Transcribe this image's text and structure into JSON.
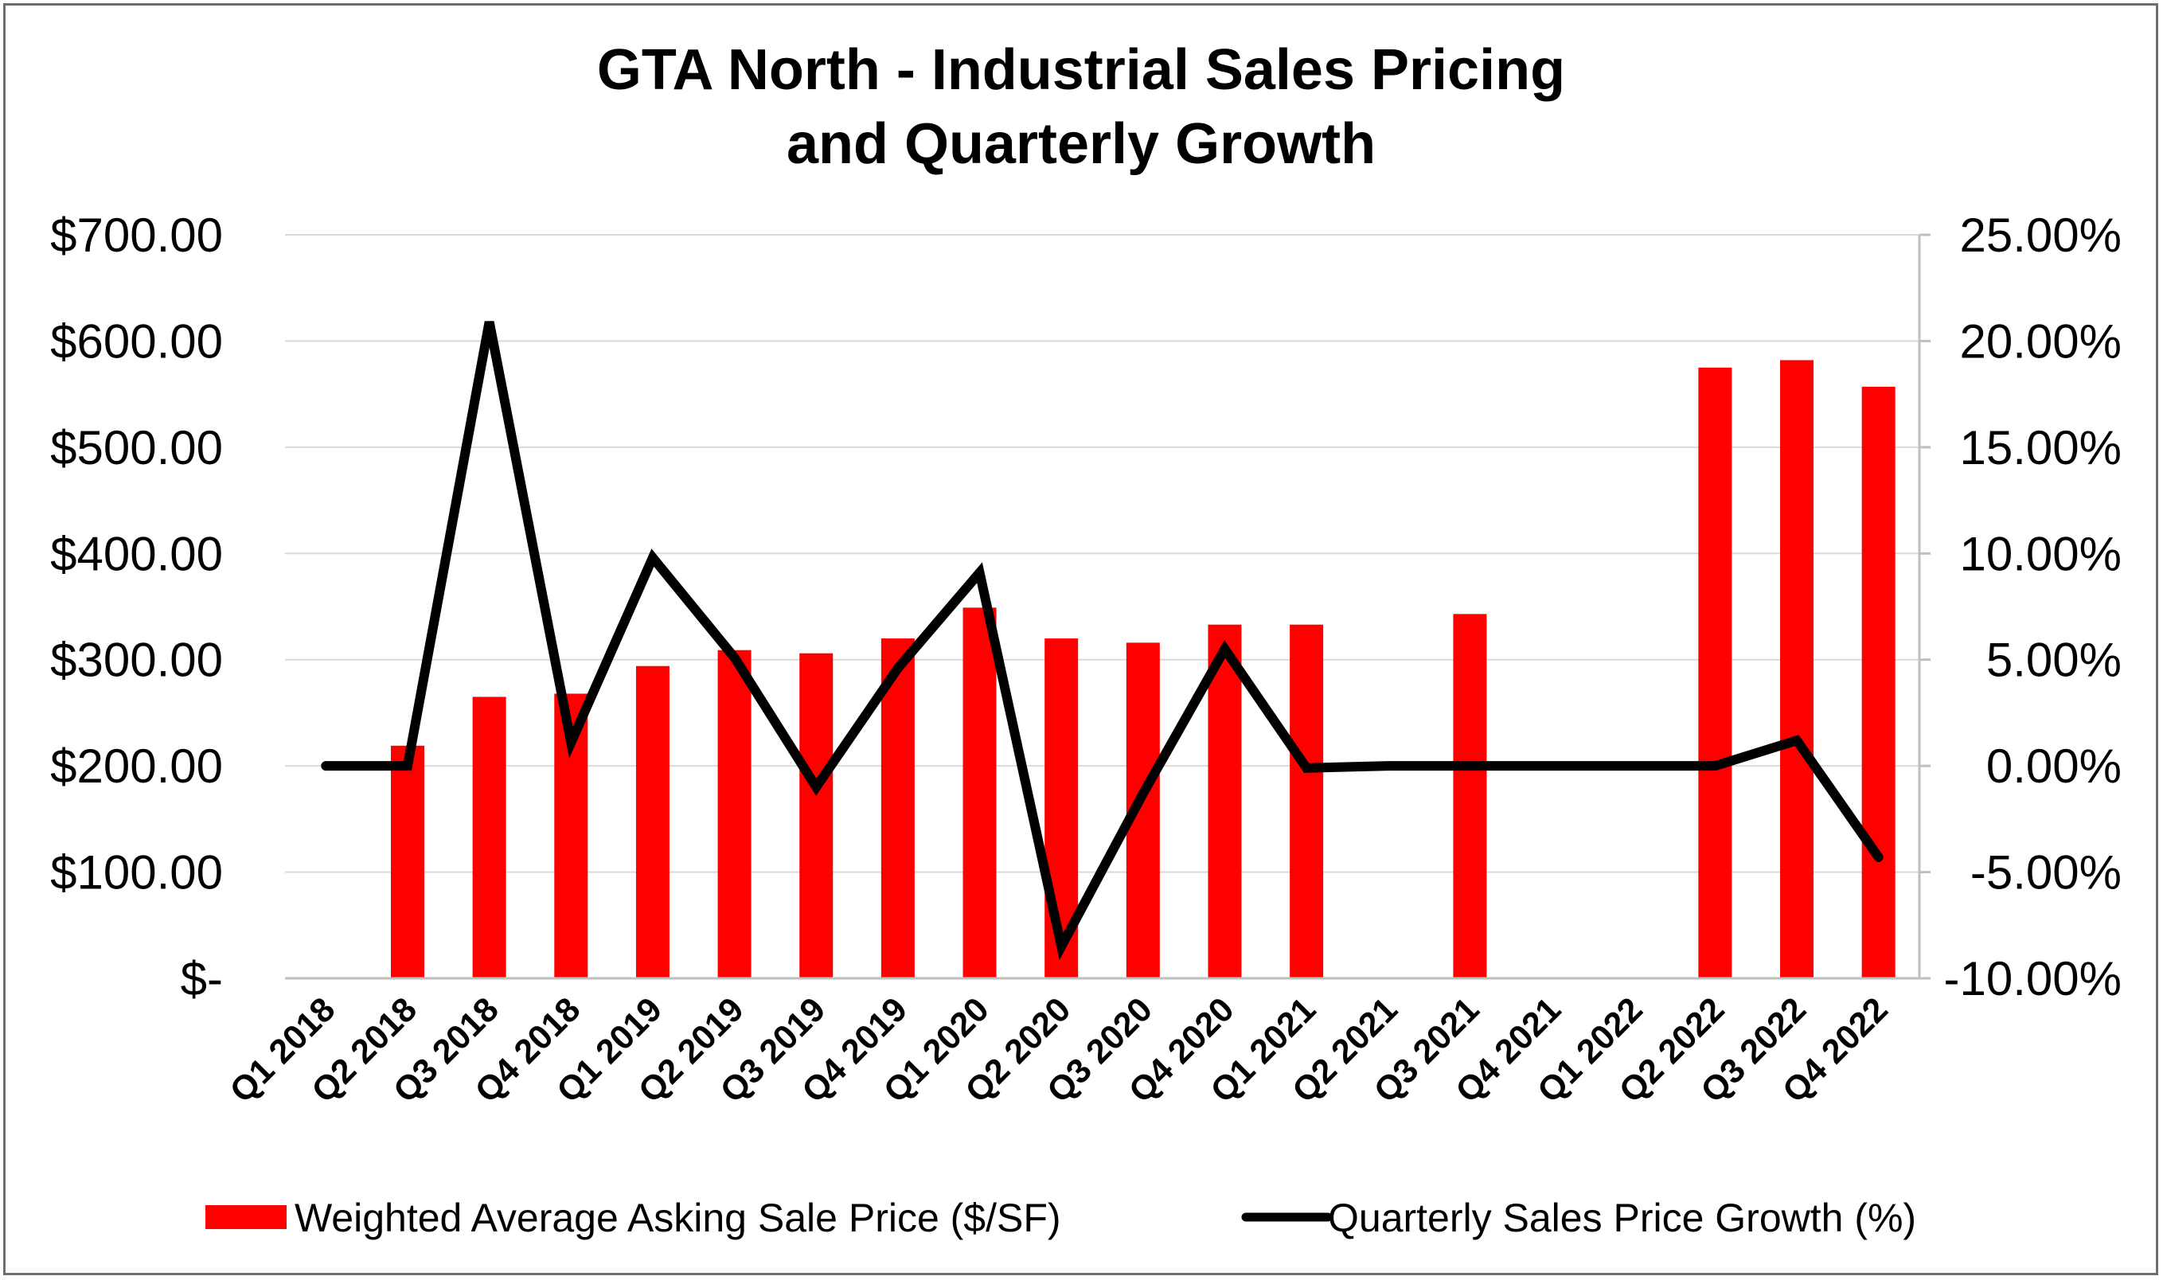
{
  "chart_data": {
    "type": "bar",
    "title": "GTA North - Industrial Sales Pricing and Quarterly Growth",
    "title_lines": [
      "GTA North - Industrial Sales Pricing",
      "and Quarterly Growth"
    ],
    "categories": [
      "Q1 2018",
      "Q2 2018",
      "Q3 2018",
      "Q4 2018",
      "Q1 2019",
      "Q2 2019",
      "Q3 2019",
      "Q4 2019",
      "Q1 2020",
      "Q2 2020",
      "Q3 2020",
      "Q4 2020",
      "Q1 2021",
      "Q2 2021",
      "Q3 2021",
      "Q4 2021",
      "Q1 2022",
      "Q2 2022",
      "Q3 2022",
      "Q4 2022"
    ],
    "series": [
      {
        "name": "Weighted Average Asking Sale Price ($/SF)",
        "type": "bar",
        "axis": "left",
        "color": "#ff0000",
        "values": [
          null,
          219,
          265,
          268,
          294,
          309,
          306,
          320,
          349,
          320,
          316,
          333,
          333,
          null,
          343,
          null,
          null,
          575,
          582,
          557
        ]
      },
      {
        "name": "Quarterly Sales Price Growth (%)",
        "type": "line",
        "axis": "right",
        "color": "#000000",
        "values": [
          0.0,
          0.0,
          20.9,
          1.1,
          9.8,
          5.1,
          -1.0,
          4.6,
          9.1,
          -8.5,
          -1.3,
          5.5,
          -0.1,
          0.0,
          0.0,
          0.0,
          0.0,
          0.0,
          1.2,
          -4.3
        ]
      }
    ],
    "y_left": {
      "ylim": [
        0,
        700
      ],
      "ticks": [
        0,
        100,
        200,
        300,
        400,
        500,
        600,
        700
      ],
      "tick_labels": [
        "$-",
        "$100.00",
        "$200.00",
        "$300.00",
        "$400.00",
        "$500.00",
        "$600.00",
        "$700.00"
      ]
    },
    "y_right": {
      "ylim": [
        -10,
        25
      ],
      "ticks": [
        -10,
        -5,
        0,
        5,
        10,
        15,
        20,
        25
      ],
      "tick_labels": [
        "-10.00%",
        "-5.00%",
        "0.00%",
        "5.00%",
        "10.00%",
        "15.00%",
        "20.00%",
        "25.00%"
      ]
    },
    "grid": true,
    "legend": "bottom",
    "colors": {
      "bar": "#ff0000",
      "line": "#000000",
      "grid": "#d9d9d9"
    }
  }
}
